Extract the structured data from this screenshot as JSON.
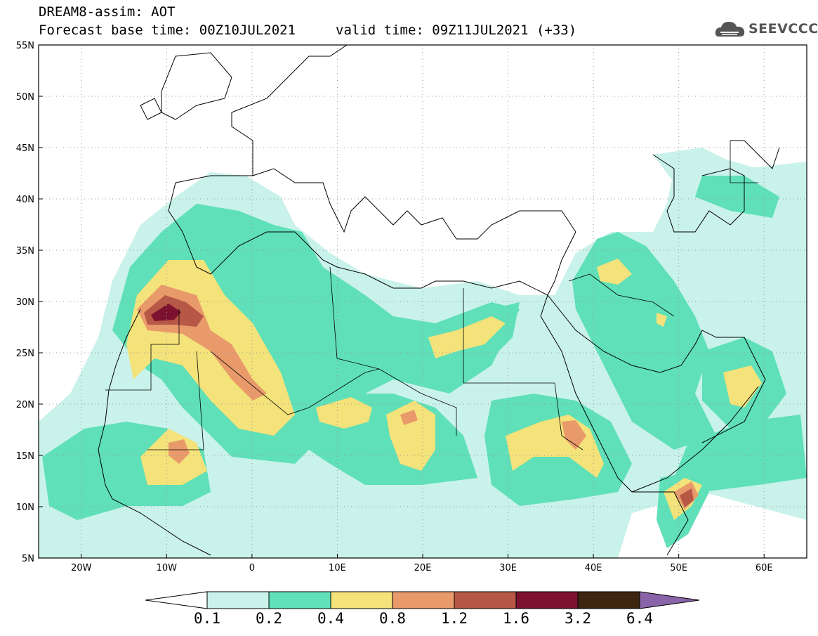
{
  "header": {
    "title": "DREAM8-assim: AOT",
    "forecast_base": "Forecast base time: 00Z10JUL2021",
    "valid_time": "valid time: 09Z11JUL2021 (+33)"
  },
  "logo": {
    "text": "SEEVCCC",
    "icon": "cloud-icon"
  },
  "map": {
    "lat_ticks": [
      "55N",
      "50N",
      "45N",
      "40N",
      "35N",
      "30N",
      "25N",
      "20N",
      "15N",
      "10N",
      "5N"
    ],
    "lon_ticks": [
      "20W",
      "10W",
      "0",
      "10E",
      "20E",
      "30E",
      "40E",
      "50E",
      "60E"
    ],
    "lon_range": [
      -25,
      65
    ],
    "lat_range": [
      5,
      55
    ],
    "grid": "dotted"
  },
  "colorbar": {
    "labels": [
      "0.1",
      "0.2",
      "0.4",
      "0.8",
      "1.2",
      "1.6",
      "3.2",
      "6.4"
    ],
    "colors": [
      "#ffffff",
      "#c9f2ea",
      "#5fe0b8",
      "#f4e27a",
      "#e99a6b",
      "#b75745",
      "#7d1230",
      "#3d2510",
      "#8a64a8"
    ]
  }
}
